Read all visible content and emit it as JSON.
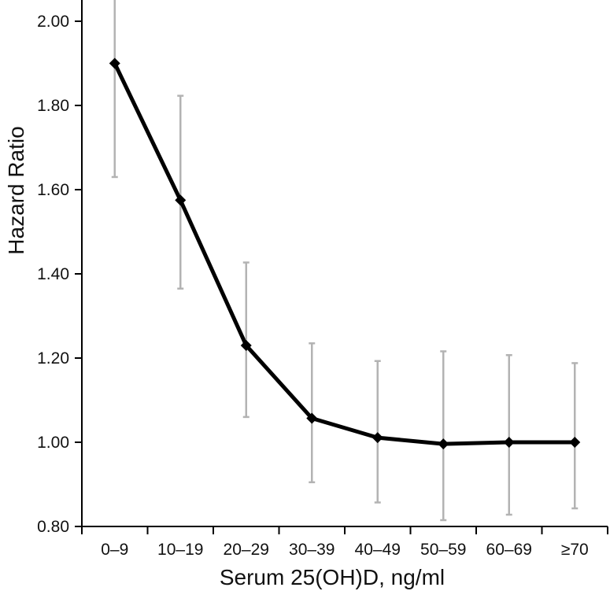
{
  "chart_data": {
    "type": "line",
    "title": "",
    "xlabel": "Serum 25(OH)D, ng/ml",
    "ylabel": "Hazard Ratio",
    "ylim": [
      0.8,
      2.0
    ],
    "yticks": [
      "0.80",
      "1.00",
      "1.20",
      "1.40",
      "1.60",
      "1.80",
      "2.00"
    ],
    "categories": [
      "0–9",
      "10–19",
      "20–29",
      "30–39",
      "40–49",
      "50–59",
      "60–69",
      "≥70"
    ],
    "series": [
      {
        "values": [
          1.9,
          1.575,
          1.23,
          1.057,
          1.011,
          0.996,
          1.0,
          1.0
        ],
        "ci_lower": [
          1.63,
          1.365,
          1.06,
          0.905,
          0.857,
          0.815,
          0.828,
          0.843
        ],
        "ci_upper": [
          2.11,
          1.823,
          1.427,
          1.235,
          1.193,
          1.216,
          1.207,
          1.188
        ]
      }
    ],
    "grid": false,
    "colors": {
      "line": "#000000",
      "error_bars": "#b3b3b3",
      "axis": "#000000"
    }
  }
}
